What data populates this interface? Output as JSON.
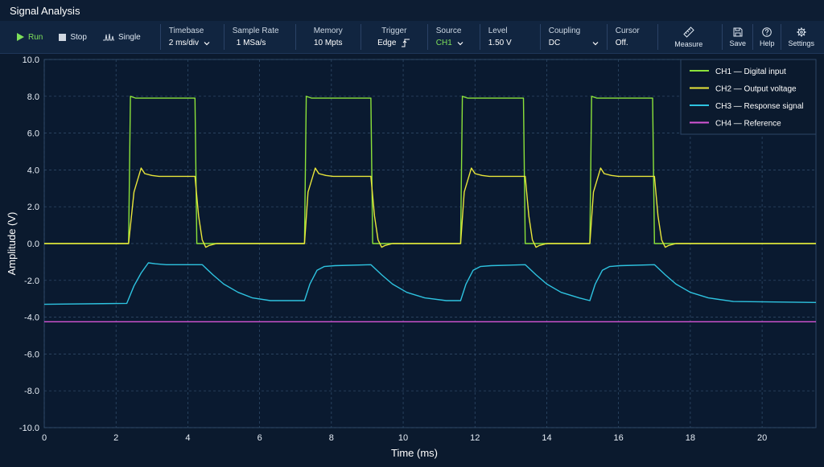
{
  "app": {
    "title": "Signal Analysis"
  },
  "toolbar": {
    "run_label": "Run",
    "stop_label": "Stop",
    "single_label": "Single",
    "timebase": {
      "label": "Timebase",
      "value": "2 ms/div"
    },
    "sample_rate": {
      "label": "Sample Rate",
      "value": "1 MSa/s"
    },
    "memory": {
      "label": "Memory",
      "value": "10 Mpts"
    },
    "trigger": {
      "label": "Trigger",
      "value": "Edge"
    },
    "source": {
      "label": "Source",
      "value": "CH1"
    },
    "level": {
      "label": "Level",
      "value": "1.50 V"
    },
    "coupling": {
      "label": "Coupling",
      "value": "DC"
    },
    "cursor": {
      "label": "Cursor",
      "value": "Off."
    },
    "measure_label": "Measure",
    "save_label": "Save",
    "help_label": "Help",
    "settings_label": "Settings"
  },
  "icons": [
    "play-icon",
    "stop-icon",
    "single-icon",
    "chevron-down-icon",
    "trigger-edge-icon",
    "ruler-icon",
    "save-icon",
    "help-icon",
    "gear-icon"
  ],
  "colors": {
    "background": "#0b1a2e",
    "toolbar": "#112540",
    "ch1": "#8be23a",
    "ch2": "#e9e63a",
    "ch3": "#2ec3e0",
    "ch4": "#d655d6",
    "run": "#7ee05a"
  },
  "chart_data": {
    "type": "line",
    "xlabel": "Time (ms)",
    "ylabel": "Amplitude (V)",
    "xlim": [
      0,
      21.5
    ],
    "ylim": [
      -10,
      10
    ],
    "x_ticks": [
      0,
      2,
      4,
      6,
      8,
      10,
      12,
      14,
      16,
      18,
      20
    ],
    "x_tick_labels": [
      "0",
      "2",
      "4",
      "6",
      "8",
      "10",
      "12",
      "14",
      "16",
      "18",
      "20"
    ],
    "y_ticks": [
      10,
      8,
      6,
      4,
      2,
      0,
      -2,
      -4,
      -6,
      -8,
      -10
    ],
    "y_tick_labels": [
      "10.0",
      "8.0",
      "6.0",
      "4.0",
      "2.0",
      "0.0",
      "-2.0",
      "-4.0",
      "-6.0",
      "-8.0",
      "-10.0"
    ],
    "grid": true,
    "legend_position": "top-right",
    "series": [
      {
        "name": "CH1 — Digital input",
        "color": "#8be23a",
        "x": [
          0,
          2.35,
          2.4,
          2.55,
          4.2,
          4.25,
          7.25,
          7.3,
          7.45,
          9.1,
          9.15,
          11.6,
          11.65,
          11.8,
          13.35,
          13.4,
          15.2,
          15.25,
          15.4,
          16.95,
          17.0,
          21.5
        ],
        "y": [
          0,
          0,
          8.0,
          7.9,
          7.9,
          0,
          0,
          8.0,
          7.9,
          7.9,
          0,
          0,
          8.0,
          7.9,
          7.9,
          0,
          0,
          8.0,
          7.9,
          7.9,
          0,
          0
        ]
      },
      {
        "name": "CH2 — Output voltage",
        "color": "#e9e63a",
        "x": [
          0,
          2.35,
          2.5,
          2.7,
          2.8,
          3.0,
          3.2,
          4.2,
          4.3,
          4.4,
          4.5,
          4.6,
          4.8,
          7.25,
          7.35,
          7.55,
          7.65,
          7.85,
          8.05,
          9.1,
          9.2,
          9.3,
          9.4,
          9.5,
          9.7,
          11.6,
          11.7,
          11.9,
          12.0,
          12.2,
          12.4,
          13.4,
          13.5,
          13.6,
          13.7,
          13.8,
          14.0,
          15.2,
          15.3,
          15.5,
          15.6,
          15.8,
          16.0,
          17.0,
          17.1,
          17.2,
          17.3,
          17.4,
          17.6,
          21.5
        ],
        "y": [
          0,
          0,
          2.8,
          4.1,
          3.8,
          3.7,
          3.65,
          3.65,
          1.5,
          0.2,
          -0.2,
          -0.1,
          0,
          0,
          2.8,
          4.1,
          3.8,
          3.7,
          3.65,
          3.65,
          1.5,
          0.2,
          -0.2,
          -0.1,
          0,
          0,
          2.8,
          4.1,
          3.8,
          3.7,
          3.65,
          3.65,
          1.5,
          0.2,
          -0.2,
          -0.1,
          0,
          0,
          2.8,
          4.1,
          3.8,
          3.7,
          3.65,
          3.65,
          1.5,
          0.2,
          -0.2,
          -0.1,
          0,
          0
        ]
      },
      {
        "name": "CH3 — Response signal",
        "color": "#2ec3e0",
        "x": [
          0,
          2.3,
          2.5,
          2.7,
          2.9,
          3.1,
          3.4,
          4.4,
          4.7,
          5.0,
          5.4,
          5.8,
          6.3,
          7.25,
          7.4,
          7.6,
          7.8,
          8.1,
          9.1,
          9.4,
          9.7,
          10.1,
          10.6,
          11.2,
          11.6,
          11.75,
          11.95,
          12.15,
          12.45,
          13.4,
          13.7,
          14.0,
          14.4,
          14.9,
          15.2,
          15.35,
          15.55,
          15.75,
          16.05,
          17.0,
          17.3,
          17.6,
          18.0,
          18.5,
          19.2,
          21.5
        ],
        "y": [
          -3.3,
          -3.25,
          -2.3,
          -1.6,
          -1.05,
          -1.1,
          -1.15,
          -1.15,
          -1.7,
          -2.2,
          -2.65,
          -2.95,
          -3.1,
          -3.1,
          -2.2,
          -1.45,
          -1.25,
          -1.2,
          -1.15,
          -1.7,
          -2.2,
          -2.65,
          -2.95,
          -3.1,
          -3.1,
          -2.2,
          -1.45,
          -1.25,
          -1.2,
          -1.15,
          -1.7,
          -2.2,
          -2.65,
          -2.95,
          -3.1,
          -2.2,
          -1.45,
          -1.25,
          -1.2,
          -1.15,
          -1.7,
          -2.2,
          -2.65,
          -2.95,
          -3.15,
          -3.2
        ]
      },
      {
        "name": "CH4 — Reference",
        "color": "#d655d6",
        "x": [
          0,
          21.5
        ],
        "y": [
          -4.25,
          -4.25
        ]
      }
    ]
  }
}
